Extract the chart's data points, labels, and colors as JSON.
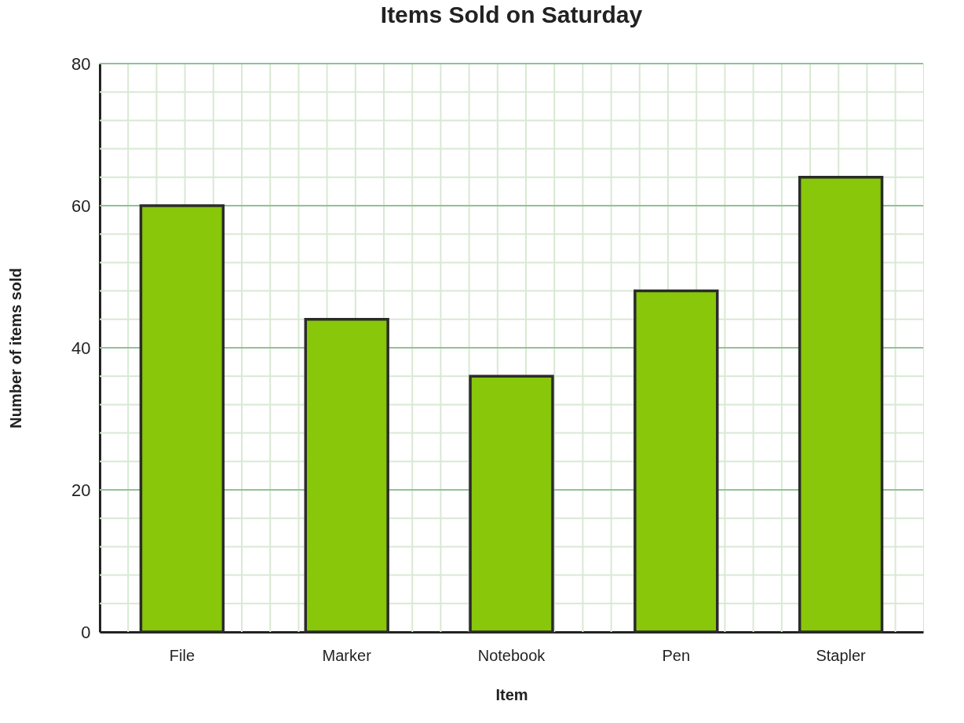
{
  "chart_data": {
    "type": "bar",
    "title": "Items Sold on Saturday",
    "xlabel": "Item",
    "ylabel": "Number of items sold",
    "categories": [
      "File",
      "Marker",
      "Notebook",
      "Pen",
      "Stapler"
    ],
    "values": [
      60,
      44,
      36,
      48,
      64
    ],
    "color": "#88c70a",
    "ylim": [
      0,
      80
    ],
    "yticks": [
      0,
      20,
      40,
      60,
      80
    ],
    "grid": true
  }
}
